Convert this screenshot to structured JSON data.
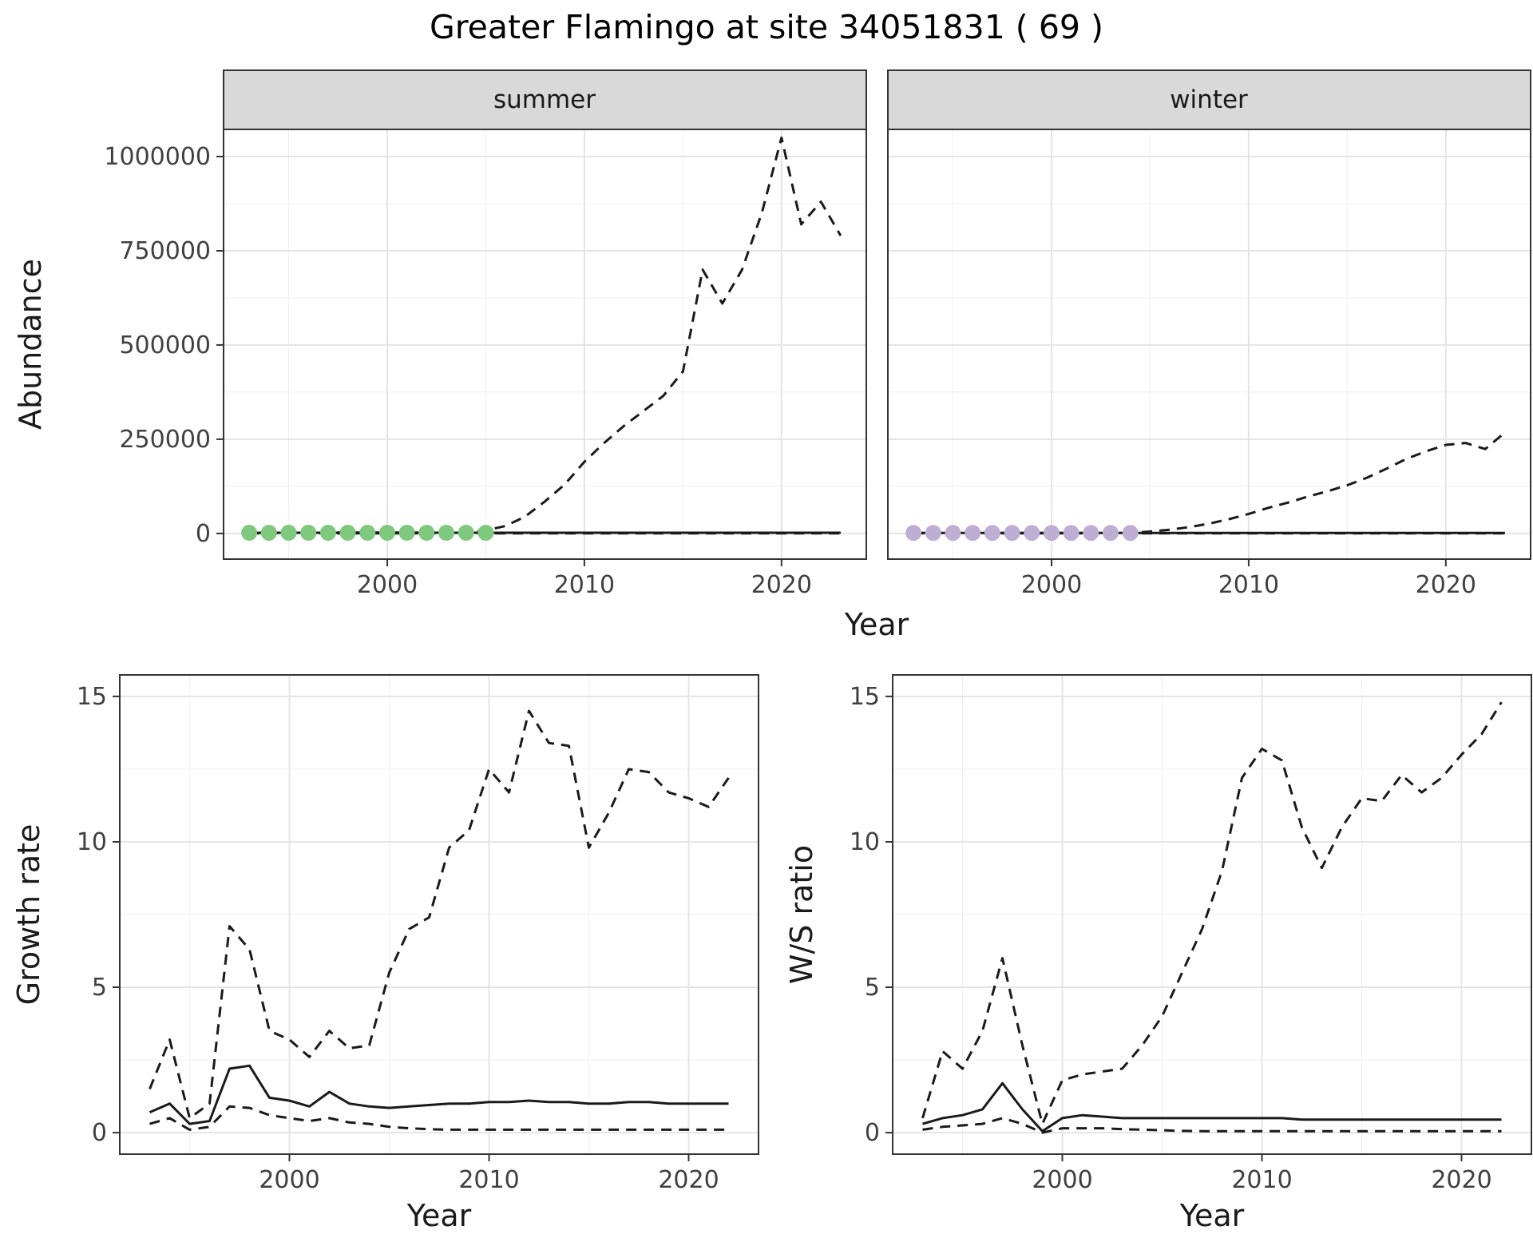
{
  "title": "Greater Flamingo at site 34051831 ( 69 )",
  "colors": {
    "line": "#1a1a1a",
    "strip_fill": "#d9d9d9",
    "panel_border": "#333333",
    "grid_major": "#e4e4e4",
    "grid_minor": "#efefef",
    "tick_text": "#404040",
    "summer_point": "#7FC97F",
    "winter_point": "#BEAED4"
  },
  "chart_data": [
    {
      "type": "line",
      "ylabel": "Abundance",
      "xlabel": "Year",
      "xlim": [
        1991.7,
        2024.3
      ],
      "ylim": [
        0,
        1070000
      ],
      "xticks": [
        2000,
        2010,
        2020
      ],
      "yticks": [
        0,
        250000,
        500000,
        750000,
        1000000
      ],
      "grid": true,
      "legend": "none",
      "facets": [
        {
          "name": "summer",
          "point_color": "#7FC97F",
          "points": {
            "x": [
              1993,
              1994,
              1995,
              1996,
              1997,
              1998,
              1999,
              2000,
              2001,
              2002,
              2003,
              2004,
              2005
            ],
            "y": [
              2000,
              2000,
              2000,
              2000,
              2000,
              2000,
              2000,
              2000,
              2000,
              2000,
              2000,
              2000,
              2000
            ]
          },
          "series": [
            {
              "name": "upper_ci",
              "style": "dashed",
              "x": [
                1993,
                1994,
                1995,
                1996,
                1997,
                1998,
                1999,
                2000,
                2001,
                2002,
                2003,
                2004,
                2005,
                2006,
                2007,
                2008,
                2009,
                2010,
                2011,
                2012,
                2013,
                2014,
                2015,
                2016,
                2017,
                2018,
                2019,
                2020,
                2021,
                2022,
                2023
              ],
              "y": [
                2000,
                2000,
                2000,
                2000,
                2500,
                2500,
                2500,
                2500,
                2500,
                2500,
                2500,
                2500,
                8000,
                20000,
                45000,
                85000,
                130000,
                190000,
                240000,
                285000,
                325000,
                365000,
                430000,
                700000,
                610000,
                700000,
                850000,
                1050000,
                820000,
                880000,
                790000
              ]
            },
            {
              "name": "median",
              "style": "solid",
              "x": [
                1993,
                1994,
                1995,
                1996,
                1997,
                1998,
                1999,
                2000,
                2001,
                2002,
                2003,
                2004,
                2005,
                2006,
                2007,
                2008,
                2009,
                2010,
                2011,
                2012,
                2013,
                2014,
                2015,
                2016,
                2017,
                2018,
                2019,
                2020,
                2021,
                2022,
                2023
              ],
              "y": [
                2000,
                2000,
                2000,
                2000,
                2000,
                2000,
                2000,
                2000,
                2000,
                2000,
                2000,
                2000,
                2000,
                2000,
                2000,
                2000,
                2000,
                2000,
                2000,
                2000,
                2000,
                2000,
                2000,
                2000,
                2000,
                2000,
                2000,
                2000,
                2000,
                2000,
                2000
              ]
            },
            {
              "name": "lower_ci",
              "style": "dashed",
              "x": [
                1993,
                1994,
                1995,
                1996,
                1997,
                1998,
                1999,
                2000,
                2001,
                2002,
                2003,
                2004,
                2005,
                2006,
                2007,
                2008,
                2009,
                2010,
                2011,
                2012,
                2013,
                2014,
                2015,
                2016,
                2017,
                2018,
                2019,
                2020,
                2021,
                2022,
                2023
              ],
              "y": [
                500,
                500,
                500,
                500,
                500,
                500,
                500,
                500,
                500,
                500,
                500,
                500,
                500,
                500,
                500,
                500,
                500,
                500,
                500,
                500,
                500,
                500,
                500,
                500,
                500,
                500,
                500,
                500,
                500,
                500,
                500
              ]
            }
          ]
        },
        {
          "name": "winter",
          "point_color": "#BEAED4",
          "points": {
            "x": [
              1993,
              1994,
              1995,
              1996,
              1997,
              1998,
              1999,
              2000,
              2001,
              2002,
              2003,
              2004
            ],
            "y": [
              1500,
              1500,
              1500,
              1500,
              1500,
              1500,
              1500,
              1500,
              1500,
              1500,
              1500,
              1500
            ]
          },
          "series": [
            {
              "name": "upper_ci",
              "style": "dashed",
              "x": [
                1993,
                1994,
                1995,
                1996,
                1997,
                1998,
                1999,
                2000,
                2001,
                2002,
                2003,
                2004,
                2005,
                2006,
                2007,
                2008,
                2009,
                2010,
                2011,
                2012,
                2013,
                2014,
                2015,
                2016,
                2017,
                2018,
                2019,
                2020,
                2021,
                2022,
                2023
              ],
              "y": [
                1500,
                1500,
                1500,
                1500,
                1500,
                1500,
                1500,
                1500,
                1500,
                1500,
                1500,
                1500,
                5000,
                10000,
                17000,
                26000,
                38000,
                52000,
                68000,
                82000,
                98000,
                112000,
                128000,
                148000,
                172000,
                198000,
                218000,
                235000,
                240000,
                224000,
                268000
              ]
            },
            {
              "name": "median",
              "style": "solid",
              "x": [
                1993,
                1994,
                1995,
                1996,
                1997,
                1998,
                1999,
                2000,
                2001,
                2002,
                2003,
                2004,
                2005,
                2006,
                2007,
                2008,
                2009,
                2010,
                2011,
                2012,
                2013,
                2014,
                2015,
                2016,
                2017,
                2018,
                2019,
                2020,
                2021,
                2022,
                2023
              ],
              "y": [
                1500,
                1500,
                1500,
                1500,
                1500,
                1500,
                1500,
                1500,
                1500,
                1500,
                1500,
                1500,
                1500,
                1500,
                1500,
                1500,
                1500,
                1500,
                1500,
                1500,
                1500,
                1500,
                1500,
                1500,
                1500,
                1500,
                1500,
                1500,
                1500,
                1500,
                1500
              ]
            },
            {
              "name": "lower_ci",
              "style": "dashed",
              "x": [
                1993,
                1994,
                1995,
                1996,
                1997,
                1998,
                1999,
                2000,
                2001,
                2002,
                2003,
                2004,
                2005,
                2006,
                2007,
                2008,
                2009,
                2010,
                2011,
                2012,
                2013,
                2014,
                2015,
                2016,
                2017,
                2018,
                2019,
                2020,
                2021,
                2022,
                2023
              ],
              "y": [
                400,
                400,
                400,
                400,
                400,
                400,
                400,
                400,
                400,
                400,
                400,
                400,
                400,
                400,
                400,
                400,
                400,
                400,
                400,
                400,
                400,
                400,
                400,
                400,
                400,
                400,
                400,
                400,
                400,
                400,
                400
              ]
            }
          ]
        }
      ]
    },
    {
      "type": "line",
      "ylabel": "Growth rate",
      "xlabel": "Year",
      "xlim": [
        1991.5,
        2023.5
      ],
      "ylim": [
        0,
        15
      ],
      "xticks": [
        2000,
        2010,
        2020
      ],
      "yticks": [
        0,
        5,
        10,
        15
      ],
      "grid": true,
      "legend": "none",
      "series": [
        {
          "name": "upper_ci",
          "style": "dashed",
          "x": [
            1993,
            1994,
            1995,
            1996,
            1997,
            1998,
            1999,
            2000,
            2001,
            2002,
            2003,
            2004,
            2005,
            2006,
            2007,
            2008,
            2009,
            2010,
            2011,
            2012,
            2013,
            2014,
            2015,
            2016,
            2017,
            2018,
            2019,
            2020,
            2021,
            2022
          ],
          "y": [
            1.5,
            3.2,
            0.5,
            1.0,
            7.1,
            6.3,
            3.5,
            3.2,
            2.6,
            3.5,
            2.9,
            3.0,
            5.5,
            7.0,
            7.4,
            9.8,
            10.4,
            12.5,
            11.7,
            14.5,
            13.4,
            13.3,
            9.8,
            11.0,
            12.5,
            12.4,
            11.7,
            11.5,
            11.2,
            12.2
          ]
        },
        {
          "name": "median",
          "style": "solid",
          "x": [
            1993,
            1994,
            1995,
            1996,
            1997,
            1998,
            1999,
            2000,
            2001,
            2002,
            2003,
            2004,
            2005,
            2006,
            2007,
            2008,
            2009,
            2010,
            2011,
            2012,
            2013,
            2014,
            2015,
            2016,
            2017,
            2018,
            2019,
            2020,
            2021,
            2022
          ],
          "y": [
            0.7,
            1.0,
            0.3,
            0.4,
            2.2,
            2.3,
            1.2,
            1.1,
            0.9,
            1.4,
            1.0,
            0.9,
            0.85,
            0.9,
            0.95,
            1.0,
            1.0,
            1.05,
            1.05,
            1.1,
            1.05,
            1.05,
            1.0,
            1.0,
            1.05,
            1.05,
            1.0,
            1.0,
            1.0,
            1.0
          ]
        },
        {
          "name": "lower_ci",
          "style": "dashed",
          "x": [
            1993,
            1994,
            1995,
            1996,
            1997,
            1998,
            1999,
            2000,
            2001,
            2002,
            2003,
            2004,
            2005,
            2006,
            2007,
            2008,
            2009,
            2010,
            2011,
            2012,
            2013,
            2014,
            2015,
            2016,
            2017,
            2018,
            2019,
            2020,
            2021,
            2022
          ],
          "y": [
            0.3,
            0.5,
            0.1,
            0.2,
            0.9,
            0.85,
            0.6,
            0.5,
            0.4,
            0.5,
            0.35,
            0.3,
            0.2,
            0.15,
            0.12,
            0.1,
            0.1,
            0.1,
            0.1,
            0.1,
            0.1,
            0.1,
            0.1,
            0.1,
            0.1,
            0.1,
            0.1,
            0.1,
            0.1,
            0.1
          ]
        }
      ]
    },
    {
      "type": "line",
      "ylabel": "W/S ratio",
      "xlabel": "Year",
      "xlim": [
        1991.5,
        2023.5
      ],
      "ylim": [
        0,
        15
      ],
      "xticks": [
        2000,
        2010,
        2020
      ],
      "yticks": [
        0,
        5,
        10,
        15
      ],
      "grid": true,
      "legend": "none",
      "series": [
        {
          "name": "upper_ci",
          "style": "dashed",
          "x": [
            1993,
            1994,
            1995,
            1996,
            1997,
            1998,
            1999,
            2000,
            2001,
            2002,
            2003,
            2004,
            2005,
            2006,
            2007,
            2008,
            2009,
            2010,
            2011,
            2012,
            2013,
            2014,
            2015,
            2016,
            2017,
            2018,
            2019,
            2020,
            2021,
            2022
          ],
          "y": [
            0.5,
            2.8,
            2.2,
            3.5,
            6.0,
            3.0,
            0.3,
            1.8,
            2.0,
            2.1,
            2.2,
            3.0,
            4.0,
            5.5,
            7.0,
            9.0,
            12.2,
            13.2,
            12.8,
            10.5,
            9.1,
            10.5,
            11.5,
            11.4,
            12.3,
            11.7,
            12.2,
            13.0,
            13.7,
            14.8
          ]
        },
        {
          "name": "median",
          "style": "solid",
          "x": [
            1993,
            1994,
            1995,
            1996,
            1997,
            1998,
            1999,
            2000,
            2001,
            2002,
            2003,
            2004,
            2005,
            2006,
            2007,
            2008,
            2009,
            2010,
            2011,
            2012,
            2013,
            2014,
            2015,
            2016,
            2017,
            2018,
            2019,
            2020,
            2021,
            2022
          ],
          "y": [
            0.3,
            0.5,
            0.6,
            0.8,
            1.7,
            0.8,
            0.05,
            0.5,
            0.6,
            0.55,
            0.5,
            0.5,
            0.5,
            0.5,
            0.5,
            0.5,
            0.5,
            0.5,
            0.5,
            0.45,
            0.45,
            0.45,
            0.45,
            0.45,
            0.45,
            0.45,
            0.45,
            0.45,
            0.45,
            0.45
          ]
        },
        {
          "name": "lower_ci",
          "style": "dashed",
          "x": [
            1993,
            1994,
            1995,
            1996,
            1997,
            1998,
            1999,
            2000,
            2001,
            2002,
            2003,
            2004,
            2005,
            2006,
            2007,
            2008,
            2009,
            2010,
            2011,
            2012,
            2013,
            2014,
            2015,
            2016,
            2017,
            2018,
            2019,
            2020,
            2021,
            2022
          ],
          "y": [
            0.1,
            0.2,
            0.25,
            0.3,
            0.5,
            0.3,
            0.0,
            0.15,
            0.15,
            0.15,
            0.12,
            0.1,
            0.08,
            0.06,
            0.05,
            0.05,
            0.05,
            0.05,
            0.05,
            0.05,
            0.05,
            0.05,
            0.05,
            0.05,
            0.05,
            0.05,
            0.05,
            0.05,
            0.05,
            0.05
          ]
        }
      ]
    }
  ]
}
